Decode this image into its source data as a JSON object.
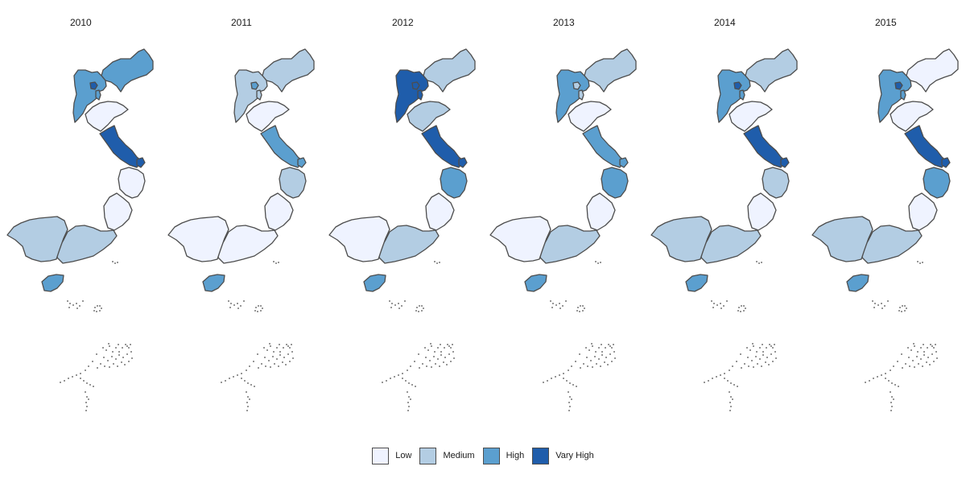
{
  "colors": {
    "Low": "#eff3ff",
    "Medium": "#b3cde3",
    "High": "#5b9fcf",
    "Vary High": "#1f5dab",
    "border": "#4d4d4d"
  },
  "legend": [
    {
      "key": "Low",
      "label": "Low"
    },
    {
      "key": "Medium",
      "label": "Medium"
    },
    {
      "key": "High",
      "label": "High"
    },
    {
      "key": "Vary High",
      "label": "Vary High"
    }
  ],
  "region_ids": [
    "liaoning",
    "hebei",
    "beijing",
    "tianjin",
    "shandong",
    "jiangsu",
    "shanghai",
    "zhejiang",
    "fujian",
    "guangdong",
    "guangxi",
    "hainan"
  ],
  "panels": [
    {
      "year": "2010",
      "categories": {
        "liaoning": "High",
        "hebei": "High",
        "beijing": "Vary High",
        "tianjin": "High",
        "shandong": "Low",
        "jiangsu": "Vary High",
        "shanghai": "Vary High",
        "zhejiang": "Low",
        "fujian": "Low",
        "guangdong": "Medium",
        "guangxi": "Medium",
        "hainan": "High"
      }
    },
    {
      "year": "2011",
      "categories": {
        "liaoning": "Medium",
        "hebei": "Medium",
        "beijing": "High",
        "tianjin": "Medium",
        "shandong": "Low",
        "jiangsu": "High",
        "shanghai": "High",
        "zhejiang": "Medium",
        "fujian": "Low",
        "guangdong": "Low",
        "guangxi": "Low",
        "hainan": "High"
      }
    },
    {
      "year": "2012",
      "categories": {
        "liaoning": "Medium",
        "hebei": "Vary High",
        "beijing": "Vary High",
        "tianjin": "Vary High",
        "shandong": "Medium",
        "jiangsu": "Vary High",
        "shanghai": "Vary High",
        "zhejiang": "High",
        "fujian": "Low",
        "guangdong": "Medium",
        "guangxi": "Low",
        "hainan": "High"
      }
    },
    {
      "year": "2013",
      "categories": {
        "liaoning": "Medium",
        "hebei": "High",
        "beijing": "Medium",
        "tianjin": "Medium",
        "shandong": "Low",
        "jiangsu": "High",
        "shanghai": "High",
        "zhejiang": "High",
        "fujian": "Low",
        "guangdong": "Medium",
        "guangxi": "Low",
        "hainan": "High"
      }
    },
    {
      "year": "2014",
      "categories": {
        "liaoning": "Medium",
        "hebei": "High",
        "beijing": "Vary High",
        "tianjin": "High",
        "shandong": "Low",
        "jiangsu": "Vary High",
        "shanghai": "Vary High",
        "zhejiang": "Medium",
        "fujian": "Low",
        "guangdong": "Medium",
        "guangxi": "Medium",
        "hainan": "High"
      }
    },
    {
      "year": "2015",
      "categories": {
        "liaoning": "Low",
        "hebei": "High",
        "beijing": "Vary High",
        "tianjin": "High",
        "shandong": "Low",
        "jiangsu": "Vary High",
        "shanghai": "Vary High",
        "zhejiang": "High",
        "fujian": "Low",
        "guangdong": "Medium",
        "guangxi": "Medium",
        "hainan": "High"
      }
    }
  ]
}
